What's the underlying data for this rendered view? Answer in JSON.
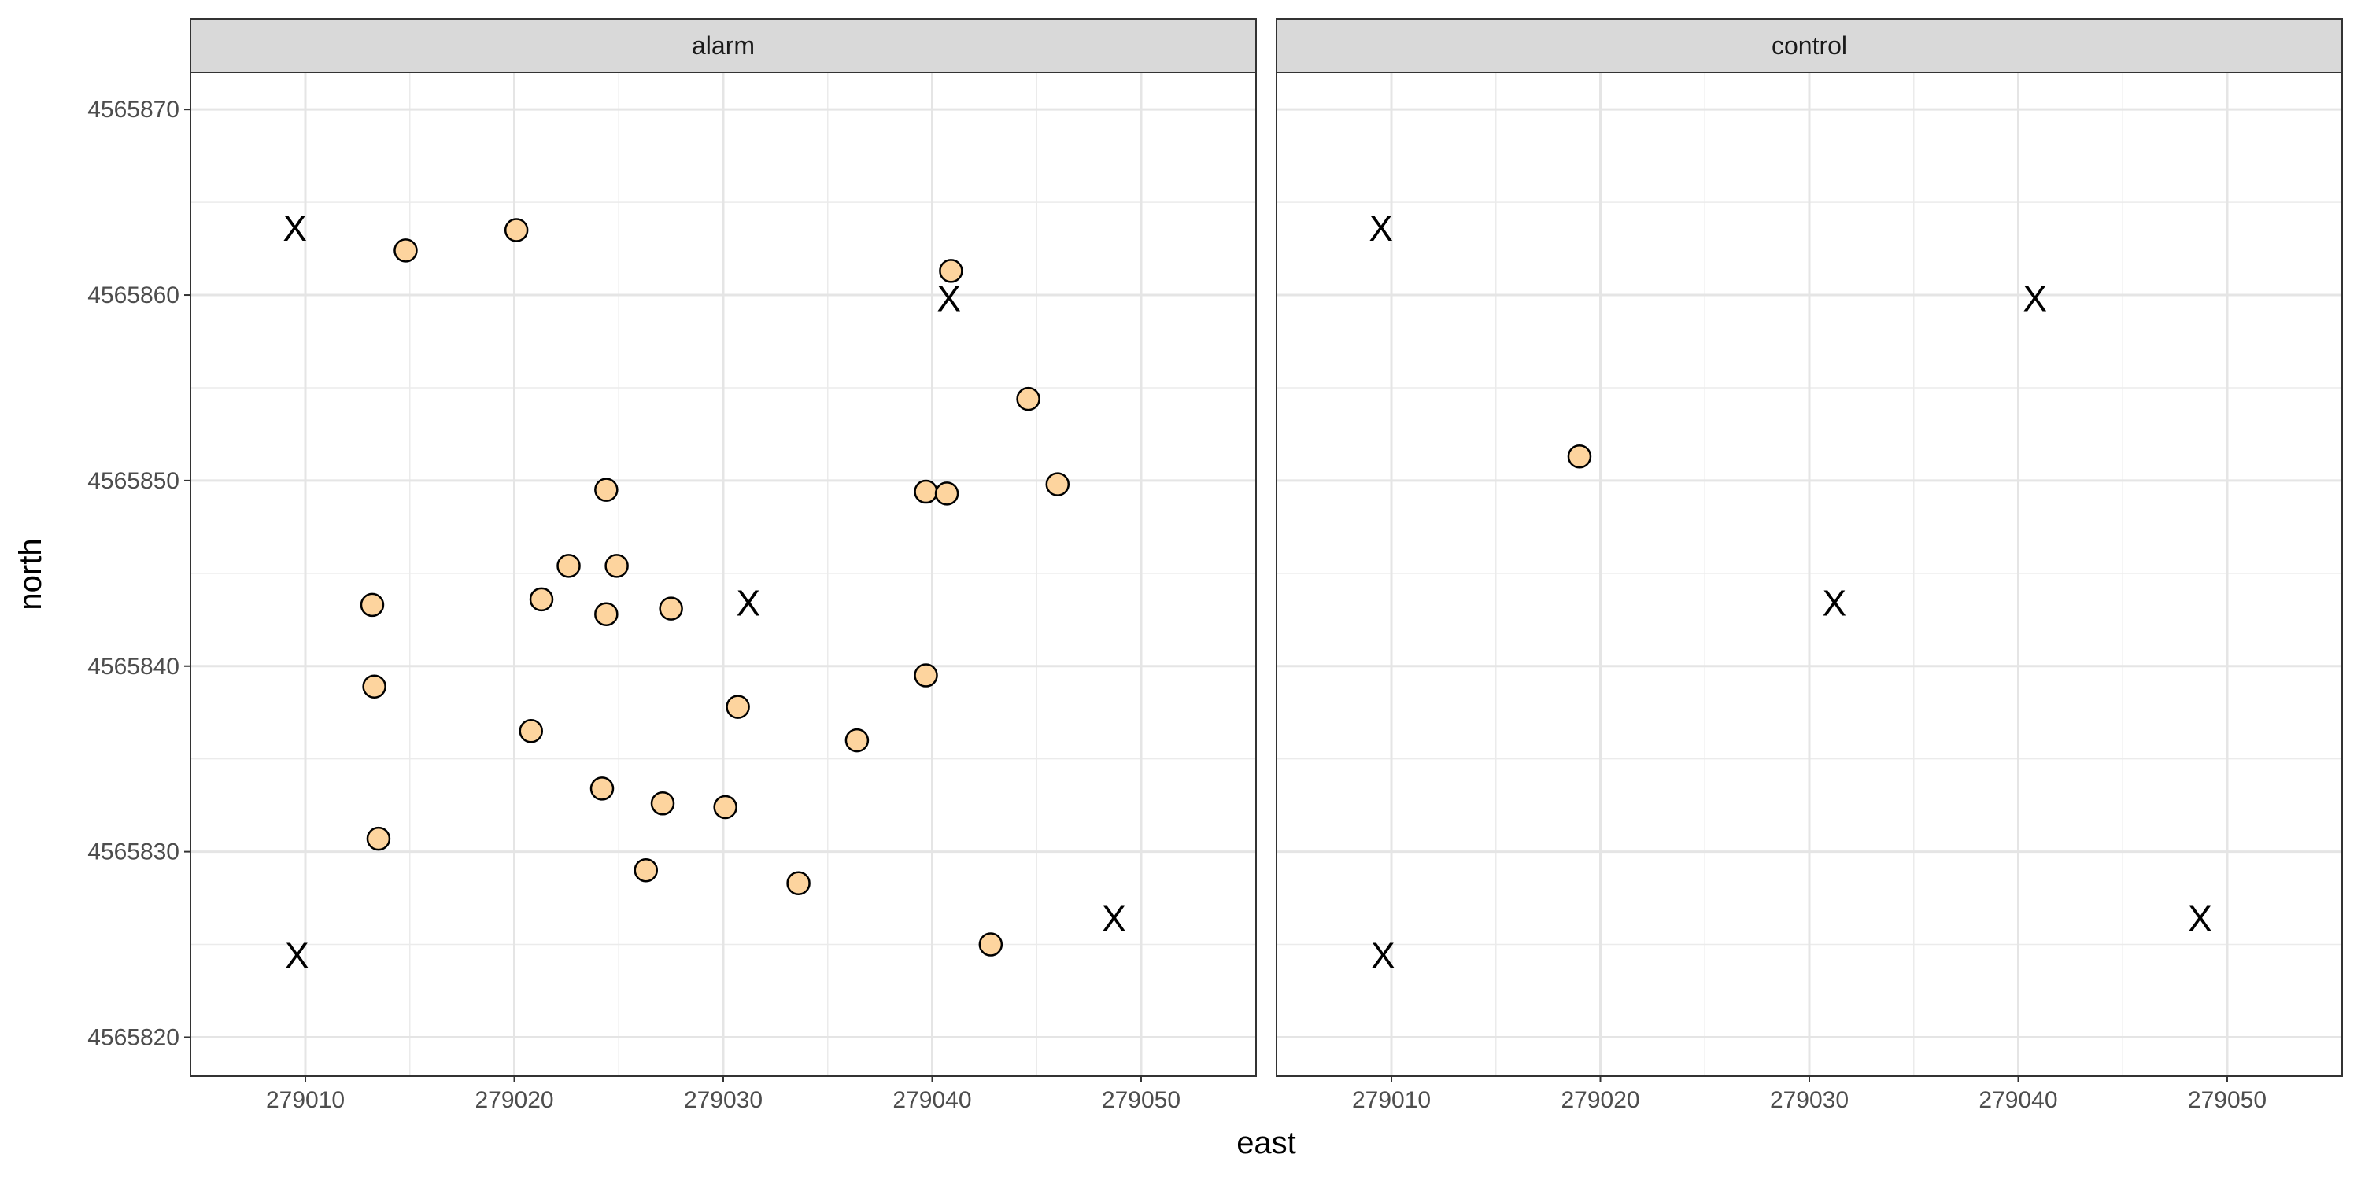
{
  "chart_data": {
    "type": "scatter",
    "xlabel": "east",
    "ylabel": "north",
    "xlim": [
      279004.5,
      279055.5
    ],
    "ylim": [
      4565817885,
      4565872.0
    ],
    "x_ticks": [
      279010,
      279020,
      279030,
      279040,
      279050
    ],
    "x_tick_labels": [
      "279010",
      "279020",
      "279030",
      "279040",
      "279050"
    ],
    "y_ticks": [
      4565820,
      4565830,
      4565840,
      4565850,
      4565860,
      4565870
    ],
    "y_tick_labels": [
      "4565820",
      "4565830",
      "4565840",
      "4565850",
      "4565860",
      "4565870"
    ],
    "grid": true,
    "point_fill": "#fdd49e",
    "point_stroke": "#000000",
    "strip_fill": "#d9d9d9",
    "marker_glyph": "X",
    "panels": [
      {
        "label": "alarm",
        "points": [
          {
            "x": 279014.8,
            "y": 4565862.4
          },
          {
            "x": 279020.1,
            "y": 4565863.5
          },
          {
            "x": 279040.9,
            "y": 4565861.3
          },
          {
            "x": 279044.6,
            "y": 4565854.4
          },
          {
            "x": 279024.4,
            "y": 4565849.5
          },
          {
            "x": 279039.7,
            "y": 4565849.4
          },
          {
            "x": 279040.7,
            "y": 4565849.3
          },
          {
            "x": 279046.0,
            "y": 4565849.8
          },
          {
            "x": 279022.6,
            "y": 4565845.4
          },
          {
            "x": 279024.9,
            "y": 4565845.4
          },
          {
            "x": 279013.2,
            "y": 4565843.3
          },
          {
            "x": 279021.3,
            "y": 4565843.6
          },
          {
            "x": 279024.4,
            "y": 4565842.8
          },
          {
            "x": 279027.5,
            "y": 4565843.1
          },
          {
            "x": 279039.7,
            "y": 4565839.5
          },
          {
            "x": 279013.3,
            "y": 4565838.9
          },
          {
            "x": 279030.7,
            "y": 4565837.8
          },
          {
            "x": 279020.8,
            "y": 4565836.5
          },
          {
            "x": 279036.4,
            "y": 4565836.0
          },
          {
            "x": 279024.2,
            "y": 4565833.4
          },
          {
            "x": 279027.1,
            "y": 4565832.6
          },
          {
            "x": 279030.1,
            "y": 4565832.4
          },
          {
            "x": 279013.5,
            "y": 4565830.7
          },
          {
            "x": 279026.3,
            "y": 4565829.0
          },
          {
            "x": 279033.6,
            "y": 4565828.3
          },
          {
            "x": 279042.8,
            "y": 4565825.0
          }
        ],
        "markers": [
          {
            "x": 279009.5,
            "y": 4565863.6
          },
          {
            "x": 279040.8,
            "y": 4565859.8
          },
          {
            "x": 279031.2,
            "y": 4565843.4
          },
          {
            "x": 279009.6,
            "y": 4565824.4
          },
          {
            "x": 279048.7,
            "y": 4565826.4
          }
        ]
      },
      {
        "label": "control",
        "points": [
          {
            "x": 279019.0,
            "y": 4565851.3
          }
        ],
        "markers": [
          {
            "x": 279009.5,
            "y": 4565863.6
          },
          {
            "x": 279040.8,
            "y": 4565859.8
          },
          {
            "x": 279031.2,
            "y": 4565843.4
          },
          {
            "x": 279009.6,
            "y": 4565824.4
          },
          {
            "x": 279048.7,
            "y": 4565826.4
          }
        ]
      }
    ]
  }
}
